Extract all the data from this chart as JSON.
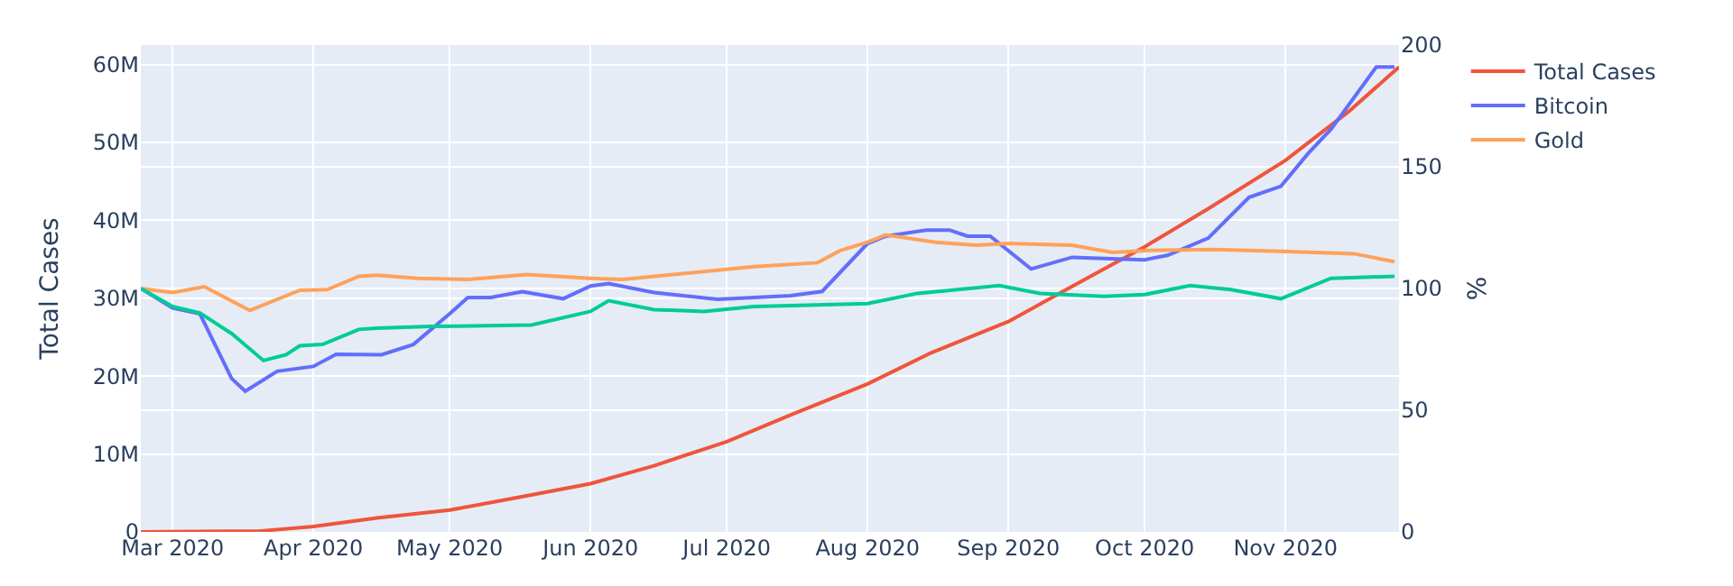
{
  "chart_data": {
    "type": "line",
    "ylabel": "Total Cases",
    "y2label": "%",
    "xlim": [
      "2020-02-23",
      "2020-11-26"
    ],
    "xticks": [
      {
        "value": "2020-03-01",
        "label": "Mar 2020"
      },
      {
        "value": "2020-04-01",
        "label": "Apr 2020"
      },
      {
        "value": "2020-05-01",
        "label": "May 2020"
      },
      {
        "value": "2020-06-01",
        "label": "Jun 2020"
      },
      {
        "value": "2020-07-01",
        "label": "Jul 2020"
      },
      {
        "value": "2020-08-01",
        "label": "Aug 2020"
      },
      {
        "value": "2020-09-01",
        "label": "Sep 2020"
      },
      {
        "value": "2020-10-01",
        "label": "Oct 2020"
      },
      {
        "value": "2020-11-01",
        "label": "Nov 2020"
      }
    ],
    "ylim": [
      0,
      62500000
    ],
    "yticks": [
      0,
      {
        "value": 10000000,
        "label": "10M"
      },
      {
        "value": 20000000,
        "label": "20M"
      },
      {
        "value": 30000000,
        "label": "30M"
      },
      {
        "value": 40000000,
        "label": "40M"
      },
      {
        "value": 50000000,
        "label": "50M"
      },
      {
        "value": 60000000,
        "label": "60M"
      }
    ],
    "y2lim": [
      0,
      200
    ],
    "y2ticks": [
      0,
      50,
      100,
      150,
      200
    ],
    "grid": true,
    "legend": "top right",
    "marker": "none",
    "line_style": "solid",
    "series": [
      {
        "name": "Total Cases",
        "color": "#ef553b",
        "x": [
          "2020-02-23",
          "2020-03-20",
          "2020-04-01",
          "2020-04-15",
          "2020-05-01",
          "2020-05-15",
          "2020-06-01",
          "2020-06-15",
          "2020-07-01",
          "2020-07-15",
          "2020-08-01",
          "2020-08-15",
          "2020-09-01",
          "2020-09-15",
          "2020-10-01",
          "2020-10-15",
          "2020-11-01",
          "2020-11-15",
          "2020-11-26"
        ],
        "values": [
          0,
          100000,
          700000,
          1800000,
          2800000,
          4300000,
          6200000,
          8500000,
          11600000,
          15000000,
          19000000,
          23000000,
          27000000,
          31500000,
          36600000,
          41500000,
          47700000,
          54000000,
          59700000
        ]
      },
      {
        "name": "Bitcoin",
        "color": "#636efa",
        "axis": "y2",
        "x": [
          "2020-02-23",
          "2020-03-01",
          "2020-03-07",
          "2020-03-14",
          "2020-03-17",
          "2020-03-24",
          "2020-04-01",
          "2020-04-06",
          "2020-04-16",
          "2020-04-23",
          "2020-05-01",
          "2020-05-05",
          "2020-05-10",
          "2020-05-17",
          "2020-05-26",
          "2020-06-01",
          "2020-06-05",
          "2020-06-15",
          "2020-06-29",
          "2020-07-07",
          "2020-07-15",
          "2020-07-22",
          "2020-08-01",
          "2020-08-05",
          "2020-08-14",
          "2020-08-19",
          "2020-08-23",
          "2020-08-28",
          "2020-09-06",
          "2020-09-15",
          "2020-10-01",
          "2020-10-06",
          "2020-10-15",
          "2020-10-24",
          "2020-10-31",
          "2020-11-06",
          "2020-11-11",
          "2020-11-21",
          "2020-11-25"
        ],
        "values": [
          100,
          92,
          89.6,
          63,
          57.8,
          66,
          68,
          73,
          72.8,
          77,
          89.6,
          96.3,
          96.3,
          98.7,
          95.8,
          101,
          102,
          98.3,
          95.6,
          96.3,
          97,
          98.8,
          118.5,
          121.5,
          124,
          124,
          121.5,
          121.5,
          108,
          112.8,
          111.8,
          113.6,
          120.7,
          137.5,
          142,
          155.5,
          165.4,
          191,
          191
        ]
      },
      {
        "name": "Gold",
        "color": "#ffa15a",
        "axis": "y2",
        "x": [
          "2020-02-23",
          "2020-03-01",
          "2020-03-08",
          "2020-03-18",
          "2020-03-29",
          "2020-04-04",
          "2020-04-11",
          "2020-04-15",
          "2020-04-24",
          "2020-05-05",
          "2020-05-18",
          "2020-06-01",
          "2020-06-08",
          "2020-07-07",
          "2020-07-21",
          "2020-07-26",
          "2020-08-01",
          "2020-08-05",
          "2020-08-16",
          "2020-08-25",
          "2020-09-01",
          "2020-09-15",
          "2020-09-24",
          "2020-10-01",
          "2020-10-16",
          "2020-10-31",
          "2020-11-16",
          "2020-11-25"
        ],
        "values": [
          100,
          98.3,
          100.7,
          91,
          99.3,
          99.5,
          105,
          105.5,
          104.2,
          103.7,
          105.7,
          104.2,
          103.7,
          109,
          110.6,
          115.6,
          119,
          122,
          119,
          117.8,
          118.5,
          117.8,
          114.8,
          115.6,
          116,
          115.3,
          114.3,
          111
        ]
      },
      {
        "name": null,
        "color": "#00cc96",
        "axis": "y2",
        "x": [
          "2020-02-23",
          "2020-03-01",
          "2020-03-07",
          "2020-03-14",
          "2020-03-21",
          "2020-03-26",
          "2020-03-29",
          "2020-04-03",
          "2020-04-11",
          "2020-04-15",
          "2020-04-27",
          "2020-05-19",
          "2020-06-01",
          "2020-06-05",
          "2020-06-15",
          "2020-06-26",
          "2020-07-07",
          "2020-07-15",
          "2020-08-01",
          "2020-08-12",
          "2020-08-30",
          "2020-09-08",
          "2020-09-22",
          "2020-10-01",
          "2020-10-11",
          "2020-10-20",
          "2020-10-31",
          "2020-11-11",
          "2020-11-25"
        ],
        "values": [
          100,
          92.6,
          90,
          81.5,
          70.4,
          72.8,
          76.5,
          77,
          83.2,
          83.7,
          84.4,
          85,
          90.6,
          95,
          91.3,
          90.6,
          92.6,
          93,
          93.8,
          98,
          101.2,
          98,
          96.8,
          97.5,
          101.2,
          99.5,
          95.8,
          104.2,
          105
        ]
      }
    ]
  }
}
